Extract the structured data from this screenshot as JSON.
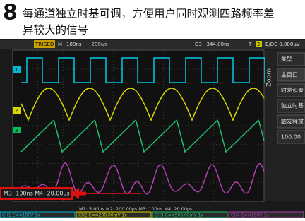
{
  "header": {
    "number": "8",
    "title_line1": "每通道独立时基可调，方便用户同时观测四路频率差",
    "title_line2": "异较大的信号"
  },
  "status_bar": {
    "trig": "TRIGED",
    "mode": "M",
    "timebase": "100ns",
    "sample": "2GSa/s",
    "cursor": "D3",
    "delay": "-344.00ns",
    "trig_label": "T",
    "trig_channel": "2",
    "trigger": "E/DC 0.000μV"
  },
  "channel_markers": [
    "1",
    "2",
    "3"
  ],
  "menu": {
    "zoom": "Zoom",
    "items": [
      "类型",
      "主窗口",
      "时差设置",
      "独立时基",
      "触发释放",
      "100.00"
    ]
  },
  "timebase_overlay": "M3: 100ns  M4: 20.00μs",
  "timebase_line": "M1: 5.00μs  M2: 200.00μs  M3: 100ns  M4: 20.00μs",
  "channels": [
    "CH1 C≡≡100V 1x",
    "CH2 C≡≡200.00mV 1x",
    "CH3 C≡≡500.00mV 1x",
    "CH4 C≡≡100V 1x"
  ]
}
